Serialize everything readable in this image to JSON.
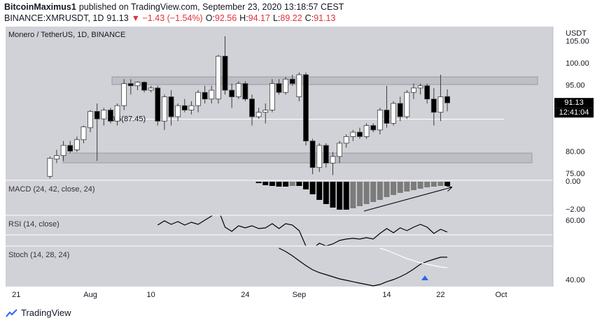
{
  "header": {
    "author": "BitcoinMaximus1",
    "published": "published on TradingView.com, September 23, 2020 13:18:57 CEST",
    "symbol": "BINANCE:XMRUSDT, 1D",
    "price": "91.13",
    "change": "▼ −1.43 (−1.54%)",
    "ohlc": [
      [
        "O:",
        "92.56"
      ],
      [
        "H:",
        "94.17"
      ],
      [
        "L:",
        "89.22"
      ],
      [
        "C:",
        "91.13"
      ]
    ]
  },
  "footer": {
    "brand": "TradingView"
  },
  "chart_data": {
    "type": "candlestick",
    "title": "Monero / TetherUS, 1D, BINANCE",
    "currency": "USDT",
    "x": [
      "07-26",
      "07-27",
      "07-28",
      "07-29",
      "07-30",
      "07-31",
      "08-01",
      "08-02",
      "08-03",
      "08-04",
      "08-05",
      "08-06",
      "08-07",
      "08-08",
      "08-09",
      "08-10",
      "08-11",
      "08-12",
      "08-13",
      "08-14",
      "08-15",
      "08-16",
      "08-17",
      "08-18",
      "08-19",
      "08-20",
      "08-21",
      "08-22",
      "08-23",
      "08-24",
      "08-25",
      "08-26",
      "08-27",
      "08-28",
      "08-29",
      "08-30",
      "08-31",
      "09-01",
      "09-02",
      "09-03",
      "09-04",
      "09-05",
      "09-06",
      "09-07",
      "09-08",
      "09-09",
      "09-10",
      "09-11",
      "09-12",
      "09-13",
      "09-14",
      "09-15",
      "09-16",
      "09-17",
      "09-18",
      "09-19",
      "09-20",
      "09-21",
      "09-22",
      "09-23"
    ],
    "open": [
      74.5,
      78.4,
      79.2,
      81.5,
      80.5,
      82.8,
      85.5,
      89.2,
      87.5,
      89.5,
      87,
      90.5,
      95.5,
      95,
      95.8,
      94,
      94.5,
      87,
      92.5,
      88,
      90.5,
      89.5,
      90.5,
      93.5,
      92,
      92,
      101.7,
      94,
      92.5,
      95.5,
      92,
      88,
      89,
      89.5,
      95.5,
      93.5,
      96.5,
      92.5,
      97.5,
      82.5,
      76.5,
      81.5,
      77.5,
      79,
      82,
      83.5,
      84.5,
      83.5,
      86,
      85,
      89.5,
      86.5,
      91,
      88,
      93.5,
      94.5,
      95,
      92,
      89,
      92.56
    ],
    "high": [
      79,
      80.5,
      82.5,
      82.5,
      83.5,
      86,
      89.5,
      91,
      90,
      90,
      91,
      96.5,
      96.5,
      96,
      96,
      95,
      95,
      93,
      94,
      91,
      92,
      91.5,
      94,
      95,
      95,
      102,
      106.2,
      95.5,
      96,
      96,
      93,
      90,
      91,
      96.5,
      96.5,
      97,
      97.5,
      98,
      98,
      83,
      82,
      82,
      80,
      82.5,
      84,
      85,
      85.5,
      86.5,
      86.5,
      90,
      95,
      91.5,
      92.5,
      94,
      95.5,
      95.5,
      95.5,
      94.5,
      97.5,
      94.17
    ],
    "low": [
      74,
      77.5,
      78,
      79.8,
      80,
      82,
      84.5,
      78,
      86,
      86.5,
      86,
      89.5,
      93,
      94,
      93.5,
      93.5,
      86,
      85,
      86,
      87,
      89,
      88.5,
      89,
      91,
      91,
      91,
      93,
      90,
      92,
      91.5,
      86,
      87.5,
      86.5,
      89,
      93,
      93,
      95,
      91.5,
      81.5,
      75,
      75.5,
      76.5,
      74.8,
      77.5,
      81,
      82.5,
      83,
      83,
      84.5,
      84,
      85.5,
      86,
      87,
      87.5,
      92,
      93,
      91,
      86,
      87,
      89.22
    ],
    "close": [
      78.6,
      79.2,
      81.5,
      80.2,
      82.8,
      85.7,
      89.2,
      87.5,
      89.5,
      87,
      90.5,
      95.5,
      95,
      95.8,
      94,
      94.5,
      87,
      92.5,
      88,
      90.5,
      89.5,
      90.5,
      93.5,
      92,
      94,
      101.7,
      94,
      92.5,
      95.5,
      92,
      88,
      89,
      89.5,
      95.5,
      93.5,
      96.5,
      95.5,
      97.5,
      82.5,
      76.5,
      81.5,
      77.5,
      79,
      82,
      83.5,
      84.5,
      83.5,
      86,
      85,
      89.5,
      86.5,
      91,
      88,
      93.5,
      94.5,
      95,
      92,
      89,
      92.5,
      91.13
    ],
    "up_color": "#ffffff",
    "down_color": "#000000",
    "wick_color": "#3a3a3a",
    "xlim": [
      "07-19",
      "10-09"
    ],
    "xticks": [
      {
        "value": "07-21",
        "label": "21"
      },
      {
        "value": "08-01",
        "label": "Aug"
      },
      {
        "value": "08-10",
        "label": "10"
      },
      {
        "value": "08-24",
        "label": "24"
      },
      {
        "value": "09-01",
        "label": "Sep"
      },
      {
        "value": "09-14",
        "label": "14"
      },
      {
        "value": "09-22",
        "label": "22"
      },
      {
        "value": "10-01",
        "label": "Oct"
      }
    ],
    "ylim": [
      73.6,
      108.4
    ],
    "yticks": [
      {
        "value": 75,
        "label": "75.00"
      },
      {
        "value": 80,
        "label": "80.00"
      },
      {
        "value": 95,
        "label": "95.00"
      },
      {
        "value": 100,
        "label": "100.00"
      },
      {
        "value": 105,
        "label": "105.00"
      }
    ],
    "last_price": 91.13,
    "countdown": "12:41:04",
    "annotations": [
      {
        "text": "0.5(87.45)",
        "value": 87.45
      }
    ],
    "panes": [
      {
        "type": "histogram",
        "title": "MACD (24, 42, close, 24)",
        "values": [
          null,
          null,
          null,
          null,
          null,
          null,
          null,
          null,
          null,
          null,
          null,
          null,
          null,
          null,
          null,
          null,
          null,
          null,
          null,
          null,
          null,
          null,
          null,
          null,
          null,
          null,
          null,
          null,
          null,
          null,
          null,
          -0.1,
          -0.25,
          -0.3,
          -0.35,
          -0.35,
          -0.3,
          -0.3,
          -0.55,
          -0.9,
          -1.3,
          -1.6,
          -1.85,
          -2.0,
          -2.0,
          -1.9,
          -1.75,
          -1.6,
          -1.45,
          -1.3,
          -1.1,
          -0.95,
          -0.8,
          -0.7,
          -0.6,
          -0.5,
          -0.4,
          -0.35,
          -0.3,
          -0.3
        ],
        "growing_color": "#000000",
        "shrinking_color": "#7b7b7b",
        "ylim": [
          -2.4,
          0.1
        ],
        "yticks": [
          {
            "value": 0,
            "label": "0.00"
          },
          {
            "value": -2,
            "label": "−2.00"
          }
        ]
      },
      {
        "type": "line",
        "title": "RSI (14, close)",
        "series": [
          {
            "color": "#000000",
            "values": [
              null,
              null,
              null,
              null,
              null,
              null,
              null,
              null,
              null,
              null,
              null,
              null,
              null,
              null,
              null,
              null,
              57,
              60,
              57.5,
              59.5,
              57,
              59,
              57.5,
              60.5,
              63.5,
              68,
              55.5,
              52.5,
              56.5,
              55,
              56.5,
              54.5,
              55,
              58,
              54.5,
              58,
              57,
              53,
              42,
              40,
              44,
              42,
              43.5,
              46,
              47,
              47.5,
              47,
              48,
              47,
              51,
              54.5,
              51.5,
              55,
              53,
              55.5,
              57.5,
              55.5,
              51,
              54,
              52
            ]
          }
        ],
        "levels": [
          50
        ],
        "level_color": "#ffffff",
        "ylim": [
          42,
          64
        ],
        "yticks": [
          {
            "value": 60,
            "label": "60.00"
          }
        ]
      },
      {
        "type": "line",
        "title": "Stoch (14, 28, 24)",
        "series": [
          {
            "color": "#000000",
            "values": [
              null,
              null,
              null,
              null,
              null,
              null,
              null,
              null,
              null,
              null,
              null,
              null,
              null,
              null,
              null,
              null,
              null,
              null,
              null,
              null,
              null,
              null,
              null,
              null,
              null,
              null,
              null,
              null,
              null,
              null,
              null,
              null,
              null,
              null,
              76.6,
              72.7,
              67.9,
              62.3,
              56.8,
              52,
              48.8,
              46.5,
              44.1,
              41.7,
              40.1,
              38.5,
              36.9,
              35.4,
              33.8,
              35.4,
              38.5,
              40.9,
              44.1,
              48,
              52.8,
              58.4,
              61.5,
              63.9,
              66.3,
              66.3
            ]
          },
          {
            "color": "#ffffff",
            "values": [
              null,
              null,
              null,
              null,
              null,
              null,
              null,
              null,
              null,
              null,
              null,
              null,
              null,
              null,
              null,
              null,
              null,
              null,
              null,
              null,
              null,
              null,
              null,
              null,
              null,
              null,
              null,
              null,
              null,
              null,
              null,
              null,
              null,
              null,
              null,
              null,
              null,
              null,
              null,
              null,
              null,
              null,
              null,
              null,
              null,
              null,
              null,
              null,
              null,
              76.6,
              74.2,
              71.1,
              67.9,
              64.7,
              62.3,
              60,
              58.4,
              56.8,
              55.2,
              54.4
            ]
          }
        ],
        "ylim": [
          33,
          79
        ],
        "yticks": [
          {
            "value": 40,
            "label": "40.00"
          }
        ]
      }
    ]
  }
}
